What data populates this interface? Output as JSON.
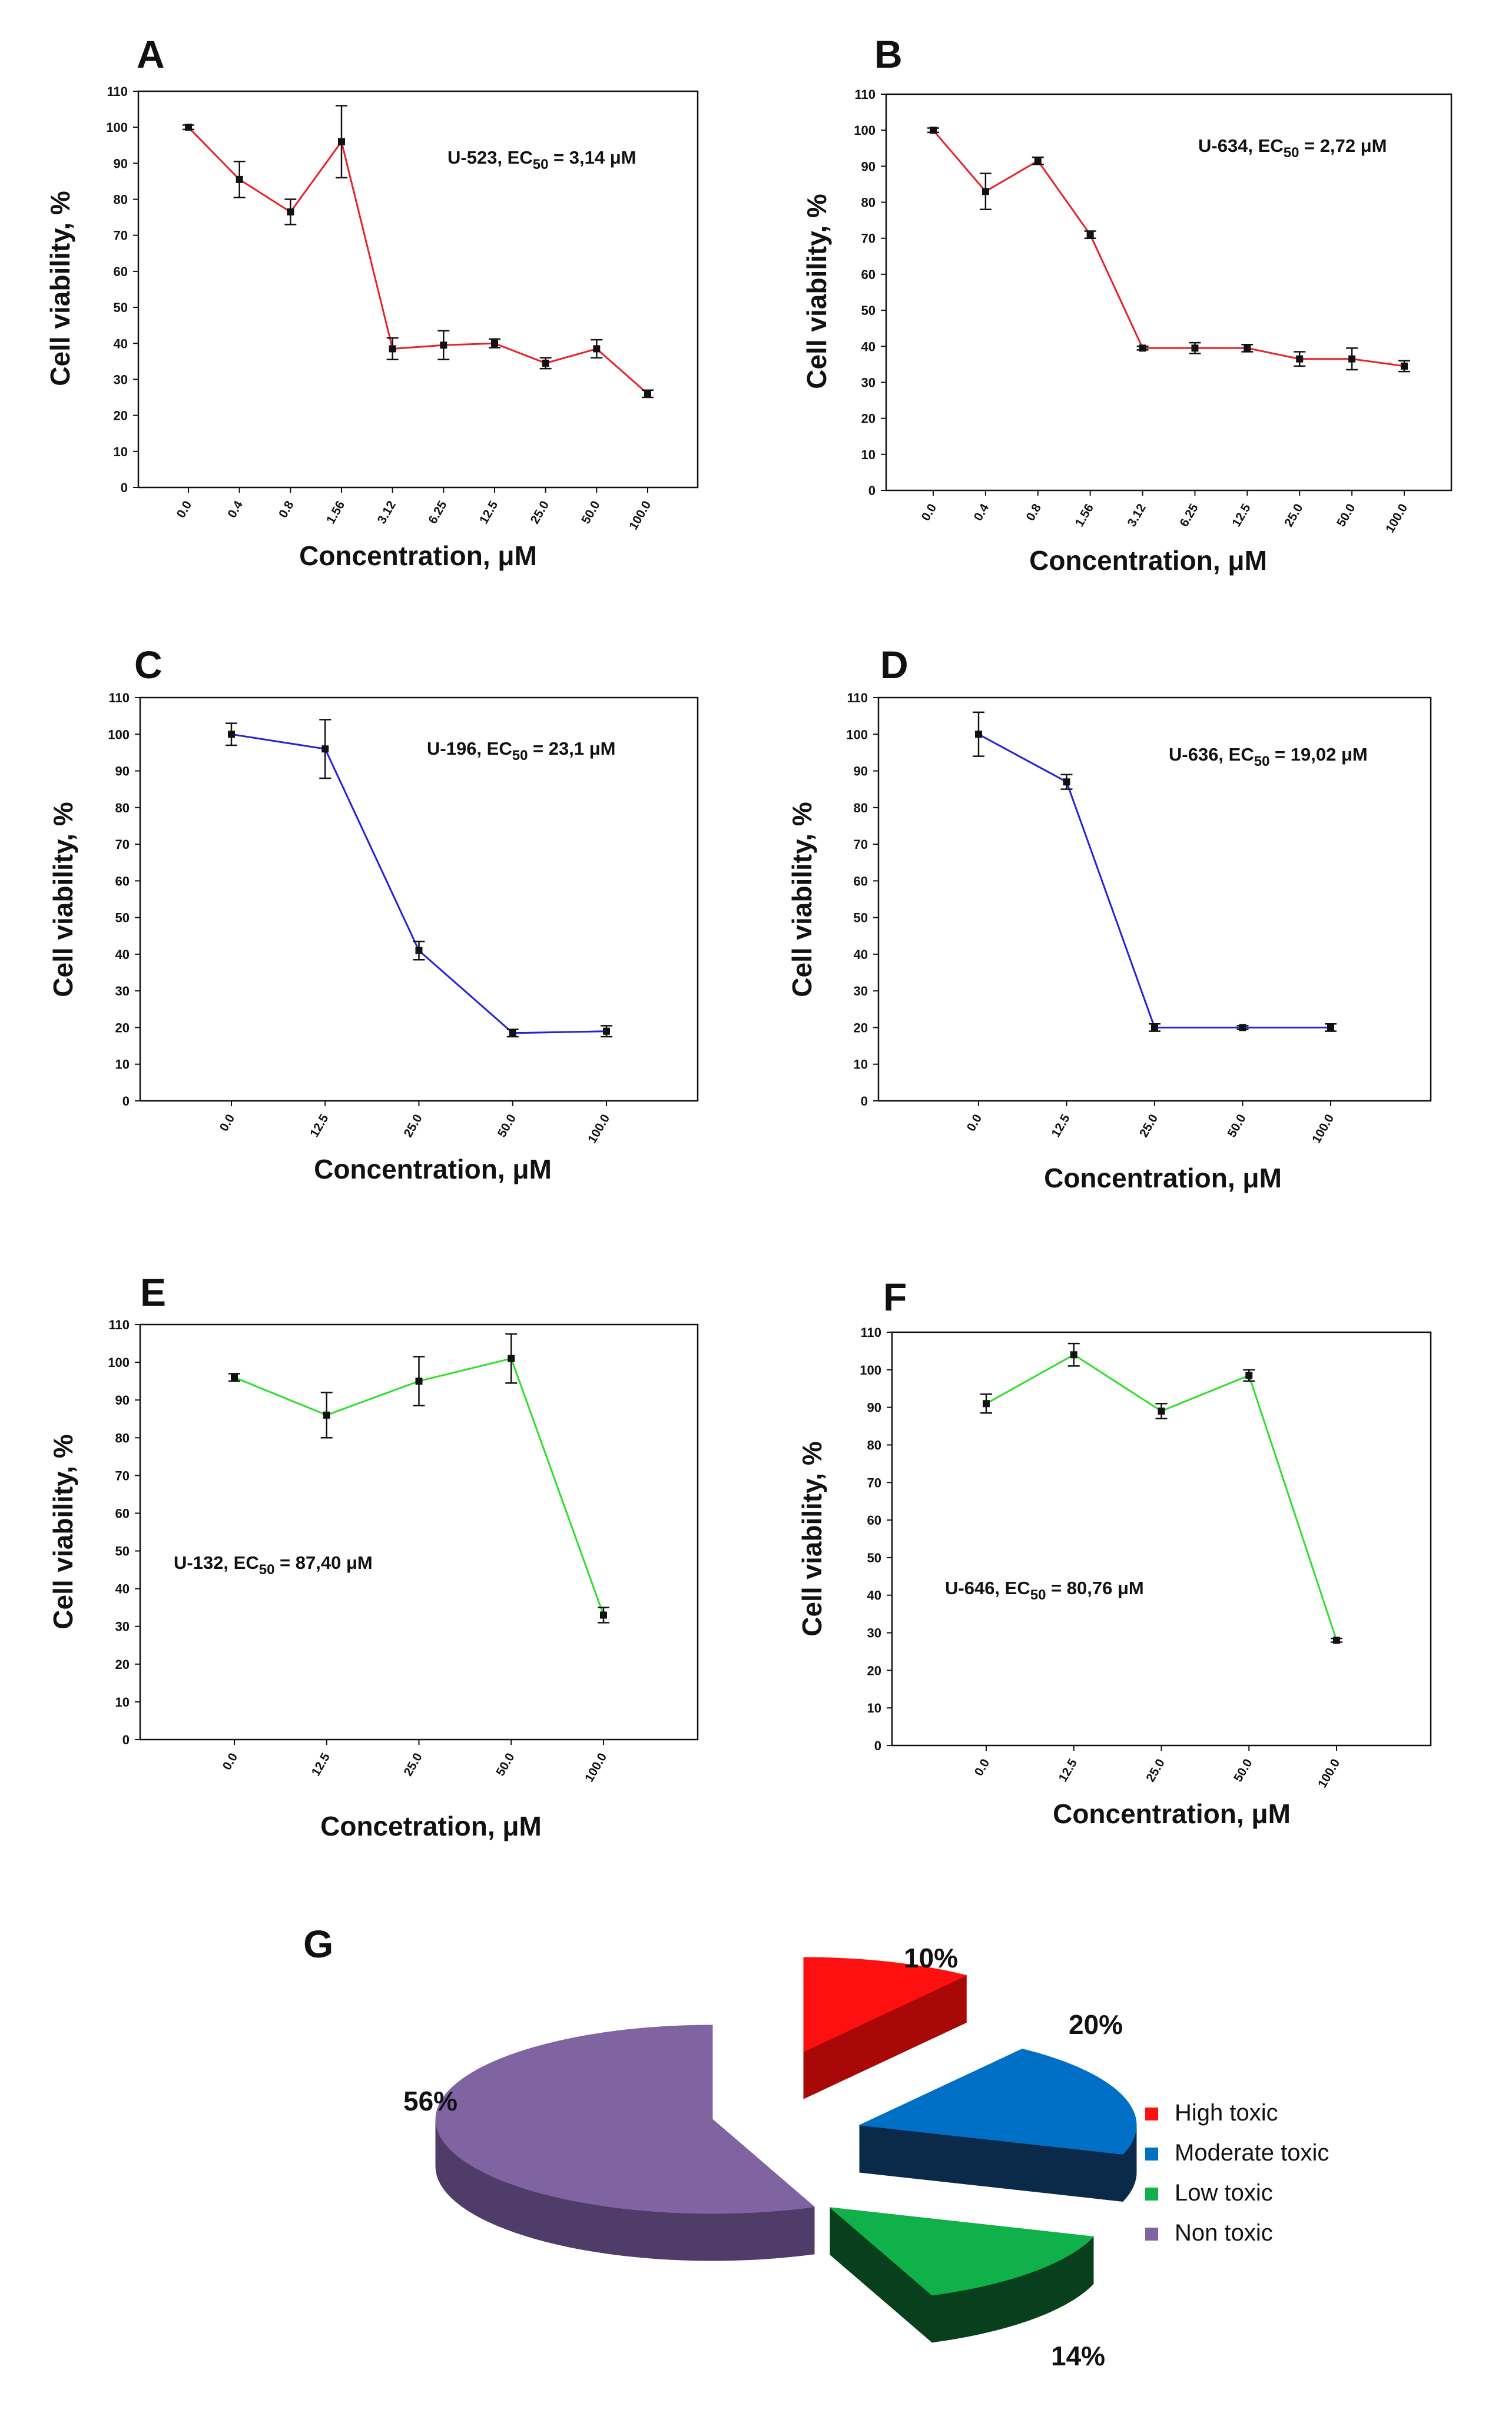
{
  "chart_data": [
    {
      "panel": "A",
      "type": "line",
      "color": "#e8222a",
      "categories": [
        "0.0",
        "0.4",
        "0.8",
        "1.56",
        "3.12",
        "6.25",
        "12.5",
        "25.0",
        "50.0",
        "100.0"
      ],
      "values": [
        100,
        85.5,
        76.5,
        96,
        38.5,
        39.5,
        40,
        34.5,
        38.5,
        26
      ],
      "errors": [
        0.6,
        5,
        3.5,
        10,
        3,
        4,
        1.2,
        1.5,
        2.5,
        1
      ],
      "annotation": {
        "compound": "U-523, EC",
        "sub": "50",
        "value": " = 3,14 μM"
      },
      "ylabel": "Cell viability, %",
      "xlabel": "Concentration, μM",
      "ylim": [
        0,
        110
      ],
      "yticks": [
        "0",
        "10",
        "20",
        "30",
        "40",
        "50",
        "60",
        "70",
        "80",
        "90",
        "100",
        "110"
      ]
    },
    {
      "panel": "B",
      "type": "line",
      "color": "#e8222a",
      "categories": [
        "0.0",
        "0.4",
        "0.8",
        "1.56",
        "3.12",
        "6.25",
        "12.5",
        "25.0",
        "50.0",
        "100.0"
      ],
      "values": [
        100,
        83,
        91.5,
        71,
        39.5,
        39.5,
        39.5,
        36.5,
        36.5,
        34.5
      ],
      "errors": [
        0.6,
        5,
        1,
        1,
        0.5,
        1.5,
        1,
        2,
        3,
        1.5
      ],
      "annotation": {
        "compound": "U-634, EC",
        "sub": "50",
        "value": " = 2,72 μM"
      },
      "ylabel": "Cell viability, %",
      "xlabel": "Concentration, μM",
      "ylim": [
        0,
        110
      ],
      "yticks": [
        "0",
        "10",
        "20",
        "30",
        "40",
        "50",
        "60",
        "70",
        "80",
        "90",
        "100",
        "110"
      ]
    },
    {
      "panel": "C",
      "type": "line",
      "color": "#2323d9",
      "categories": [
        "0.0",
        "12.5",
        "25.0",
        "50.0",
        "100.0"
      ],
      "values": [
        100,
        96,
        41,
        18.5,
        19
      ],
      "errors": [
        3,
        8,
        2.5,
        1,
        1.5
      ],
      "annotation": {
        "compound": "U-196, EC",
        "sub": "50",
        "value": " = 23,1 μM"
      },
      "ylabel": "Cell viability, %",
      "xlabel": "Concentration, μM",
      "ylim": [
        0,
        110
      ],
      "yticks": [
        "0",
        "10",
        "20",
        "30",
        "40",
        "50",
        "60",
        "70",
        "80",
        "90",
        "100",
        "110"
      ]
    },
    {
      "panel": "D",
      "type": "line",
      "color": "#2323d9",
      "categories": [
        "0.0",
        "12.5",
        "25.0",
        "50.0",
        "100.0"
      ],
      "values": [
        100,
        87,
        20,
        20,
        20
      ],
      "errors": [
        6,
        2,
        1,
        0.5,
        1
      ],
      "annotation": {
        "compound": "U-636, EC",
        "sub": "50",
        "value": " = 19,02 μM"
      },
      "ylabel": "Cell viability, %",
      "xlabel": "Concentration, μM",
      "ylim": [
        0,
        110
      ],
      "yticks": [
        "0",
        "10",
        "20",
        "30",
        "40",
        "50",
        "60",
        "70",
        "80",
        "90",
        "100",
        "110"
      ]
    },
    {
      "panel": "E",
      "type": "line",
      "color": "#2ee02e",
      "categories": [
        "0.0",
        "12.5",
        "25.0",
        "50.0",
        "100.0"
      ],
      "values": [
        96,
        86,
        95,
        101,
        33
      ],
      "errors": [
        1,
        6,
        6.5,
        6.5,
        2
      ],
      "annotation": {
        "compound": "U-132, EC",
        "sub": "50",
        "value": " = 87,40 μM"
      },
      "ylabel": "Cell viability, %",
      "xlabel": "Concetration, μM",
      "ylim": [
        0,
        110
      ],
      "yticks": [
        "0",
        "10",
        "20",
        "30",
        "40",
        "50",
        "60",
        "70",
        "80",
        "90",
        "100",
        "110"
      ]
    },
    {
      "panel": "F",
      "type": "line",
      "color": "#2ee02e",
      "categories": [
        "0.0",
        "12.5",
        "25.0",
        "50.0",
        "100.0"
      ],
      "values": [
        91,
        104,
        89,
        98.5,
        28
      ],
      "errors": [
        2.5,
        3,
        2,
        1.5,
        0.5
      ],
      "annotation": {
        "compound": "U-646, EC",
        "sub": "50",
        "value": " = 80,76 μM"
      },
      "ylabel": "Cell viability, %",
      "xlabel": "Concentration, μM",
      "ylim": [
        0,
        110
      ],
      "yticks": [
        "0",
        "10",
        "20",
        "30",
        "40",
        "50",
        "60",
        "70",
        "80",
        "90",
        "100",
        "110"
      ]
    },
    {
      "panel": "G",
      "type": "pie",
      "slices": [
        {
          "label": "High toxic",
          "value": 10,
          "pct_label": "10%",
          "color": "#ff1010",
          "side": "#a80808"
        },
        {
          "label": "Moderate toxic",
          "value": 20,
          "pct_label": "20%",
          "color": "#0070c6",
          "side": "#0b2a4a"
        },
        {
          "label": "Low toxic",
          "value": 14,
          "pct_label": "14%",
          "color": "#10b04a",
          "side": "#083f1c"
        },
        {
          "label": "Non toxic",
          "value": 56,
          "pct_label": "56%",
          "color": "#8064a2",
          "side": "#4f3c68"
        }
      ]
    }
  ]
}
